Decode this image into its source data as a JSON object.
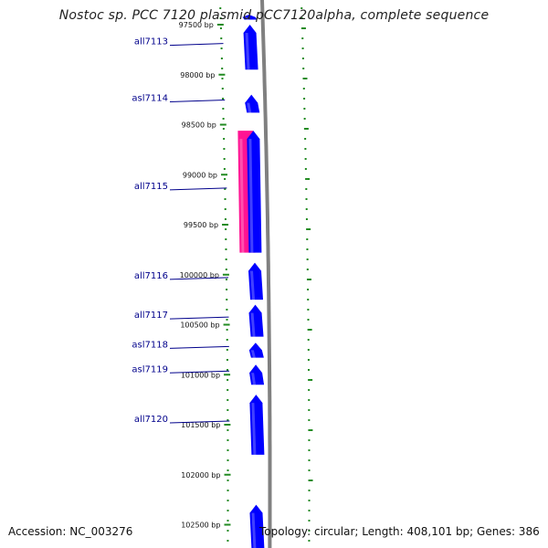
{
  "title": "Nostoc sp. PCC 7120 plasmid pCC7120alpha, complete sequence",
  "footer": {
    "accession": "Accession: NC_003276",
    "summary": "Topology: circular; Length: 408,101 bp; Genes: 386"
  },
  "colors": {
    "forward_gene": "#0000ff",
    "reverse_gene": "#ff1493",
    "backbone": "#808080",
    "tick": "#228b22",
    "label": "#00008b"
  },
  "ticks": [
    {
      "bp": 97500,
      "label": "97500 bp"
    },
    {
      "bp": 98000,
      "label": "98000 bp"
    },
    {
      "bp": 98500,
      "label": "98500 bp"
    },
    {
      "bp": 99000,
      "label": "99000 bp"
    },
    {
      "bp": 99500,
      "label": "99500 bp"
    },
    {
      "bp": 100000,
      "label": "100000 bp"
    },
    {
      "bp": 100500,
      "label": "100500 bp"
    },
    {
      "bp": 101000,
      "label": "101000 bp"
    },
    {
      "bp": 101500,
      "label": "101500 bp"
    },
    {
      "bp": 102000,
      "label": "102000 bp"
    },
    {
      "bp": 102500,
      "label": "102500 bp"
    }
  ],
  "genes": [
    {
      "name": "",
      "strand": "+",
      "start": 97400,
      "end": 97450
    },
    {
      "name": "all7113",
      "strand": "+",
      "start": 97500,
      "end": 97950
    },
    {
      "name": "asl7114",
      "strand": "+",
      "start": 98200,
      "end": 98380
    },
    {
      "name": "",
      "strand": "-",
      "start": 98560,
      "end": 99780
    },
    {
      "name": "all7115",
      "strand": "+",
      "start": 98560,
      "end": 99780
    },
    {
      "name": "all7116",
      "strand": "+",
      "start": 99880,
      "end": 100250
    },
    {
      "name": "all7117",
      "strand": "+",
      "start": 100300,
      "end": 100620
    },
    {
      "name": "asl7118",
      "strand": "+",
      "start": 100680,
      "end": 100830
    },
    {
      "name": "asl7119",
      "strand": "+",
      "start": 100900,
      "end": 101100
    },
    {
      "name": "all7120",
      "strand": "+",
      "start": 101200,
      "end": 101800
    },
    {
      "name": "",
      "strand": "+",
      "start": 102300,
      "end": 102750
    }
  ]
}
